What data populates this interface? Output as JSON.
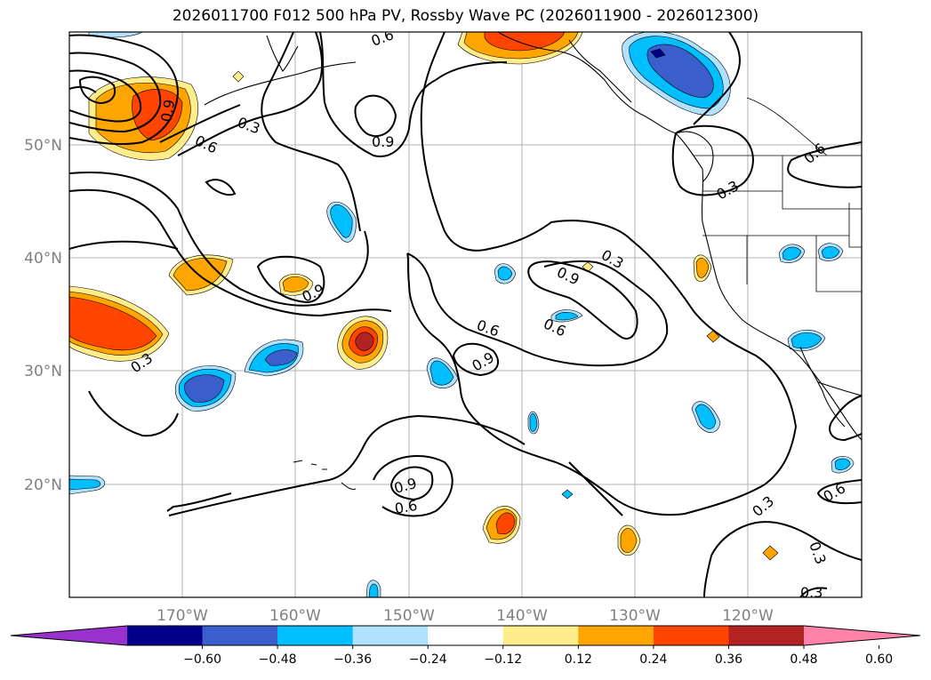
{
  "title": "2026011700 F012 500 hPa PV, Rossby Wave PC (2026011900 - 2026012300)",
  "lat_labels": [
    "50°N",
    "40°N",
    "30°N",
    "20°N"
  ],
  "lon_labels": [
    "170°W",
    "160°W",
    "150°W",
    "140°W",
    "130°W",
    "120°W"
  ],
  "colorbar": {
    "ticks": [
      "−0.60",
      "−0.48",
      "−0.36",
      "−0.24",
      "−0.12",
      "0.12",
      "0.24",
      "0.36",
      "0.48",
      "0.60"
    ],
    "colors": [
      "#9932cc",
      "#00008b",
      "#3a5fcd",
      "#00bfff",
      "#b0e2ff",
      "#ffffff",
      "#ffec8b",
      "#ffa500",
      "#ff4500",
      "#b22222",
      "#ff82ab"
    ]
  },
  "contour_labels": [
    "0.3",
    "0.6",
    "0.9",
    "0.9",
    "0.9",
    "0.6",
    "0.9",
    "0.3",
    "0.9",
    "0.6",
    "0.6",
    "0.9",
    "0.6",
    "0.3",
    "0.3",
    "0.6",
    "0.3",
    "0.3",
    "0.3",
    "0.6"
  ]
}
